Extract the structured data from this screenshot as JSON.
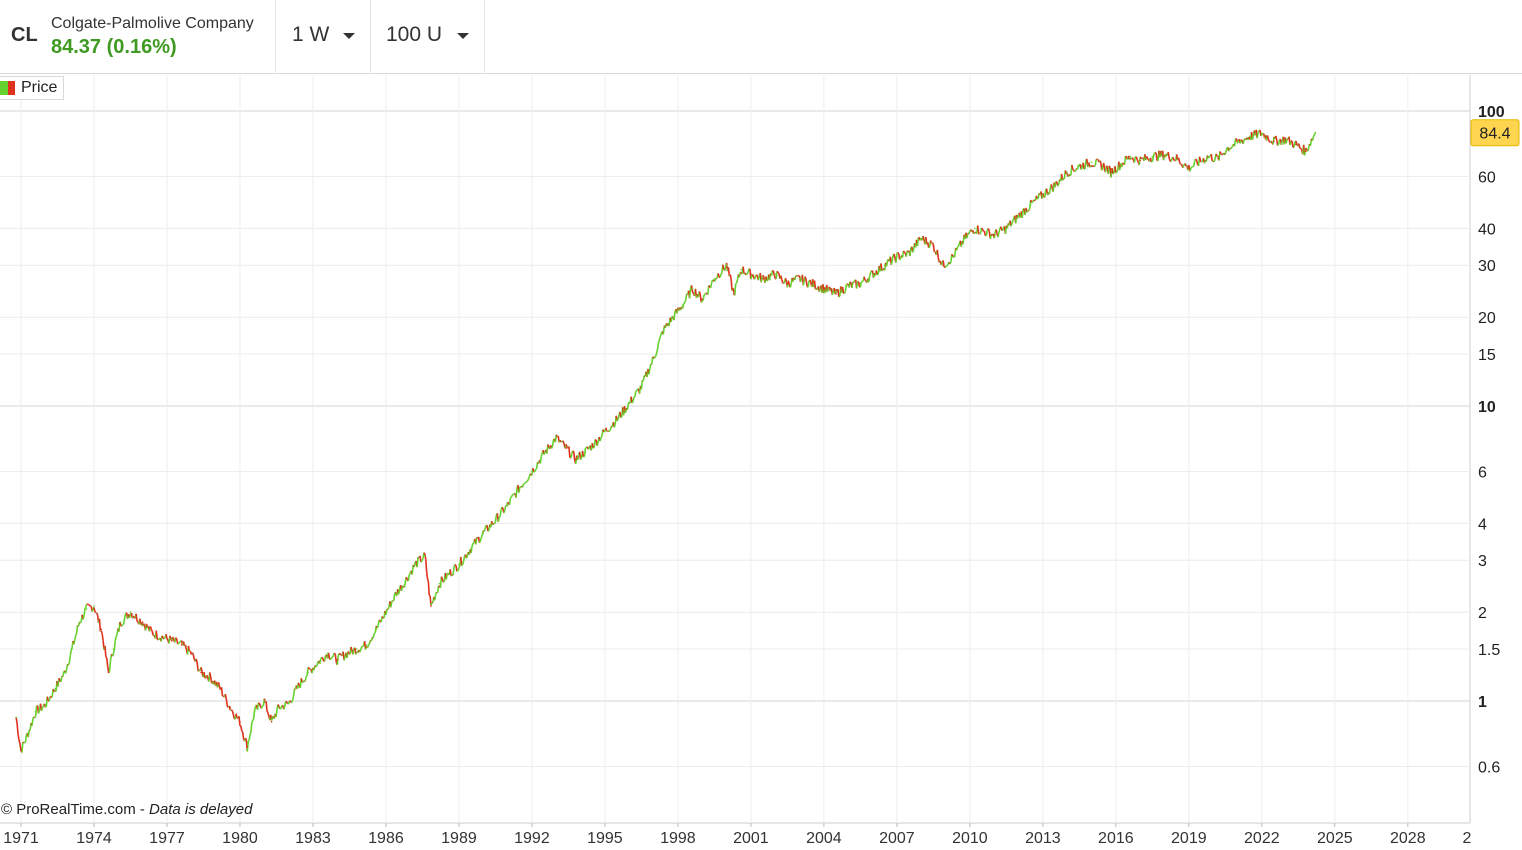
{
  "header": {
    "ticker": "CL",
    "company": "Colgate-Palmolive Company",
    "last_price": "84.37 (0.16%)",
    "interval_label": "1 W",
    "units_label": "100 U"
  },
  "legend": {
    "label": "Price",
    "up_color": "#66d22e",
    "down_color": "#e0301e"
  },
  "footer": {
    "source": "© ProRealTime.com",
    "separator": "-",
    "note": "Data is delayed"
  },
  "chart_data": {
    "type": "line",
    "title": "",
    "yscale": "log",
    "ylim": [
      0.5,
      120
    ],
    "xlim": [
      1970.8,
      2030.5
    ],
    "y_ticks": [
      "100",
      "60",
      "40",
      "30",
      "20",
      "15",
      "10",
      "6",
      "4",
      "3",
      "2",
      "1.5",
      "1",
      "0.6"
    ],
    "x_ticks": [
      "1971",
      "1974",
      "1977",
      "1980",
      "1983",
      "1986",
      "1989",
      "1992",
      "1995",
      "1998",
      "2001",
      "2004",
      "2007",
      "2010",
      "2013",
      "2016",
      "2019",
      "2022",
      "2025",
      "2028",
      "2"
    ],
    "last_value_label": "84.4",
    "last_value": 84.4,
    "series": [
      {
        "name": "Price",
        "x": [
          1970.8,
          1971.0,
          1971.3,
          1971.6,
          1972.0,
          1972.4,
          1972.8,
          1973.1,
          1973.4,
          1973.7,
          1974.0,
          1974.3,
          1974.6,
          1974.8,
          1975.1,
          1975.5,
          1976.0,
          1976.4,
          1976.8,
          1977.2,
          1977.6,
          1978.0,
          1978.4,
          1978.8,
          1979.2,
          1979.6,
          1980.0,
          1980.3,
          1980.6,
          1981.0,
          1981.3,
          1981.6,
          1982.0,
          1982.4,
          1982.8,
          1983.2,
          1983.6,
          1984.0,
          1984.4,
          1984.8,
          1985.2,
          1985.6,
          1986.0,
          1986.4,
          1986.8,
          1987.2,
          1987.6,
          1987.85,
          1988.2,
          1988.6,
          1989.0,
          1989.5,
          1990.0,
          1990.5,
          1991.0,
          1991.5,
          1992.0,
          1992.5,
          1993.0,
          1993.4,
          1993.8,
          1994.2,
          1994.6,
          1995.0,
          1995.5,
          1996.0,
          1996.5,
          1997.0,
          1997.4,
          1997.8,
          1998.2,
          1998.6,
          1999.0,
          1999.5,
          2000.0,
          2000.3,
          2000.6,
          2001.0,
          2001.5,
          2002.0,
          2002.5,
          2003.0,
          2003.5,
          2004.0,
          2004.5,
          2005.0,
          2005.5,
          2006.0,
          2006.5,
          2007.0,
          2007.5,
          2008.0,
          2008.5,
          2008.9,
          2009.3,
          2009.8,
          2010.2,
          2010.6,
          2011.0,
          2011.5,
          2012.0,
          2012.5,
          2013.0,
          2013.5,
          2014.0,
          2014.5,
          2015.0,
          2015.5,
          2015.8,
          2016.2,
          2016.6,
          2017.0,
          2017.5,
          2018.0,
          2018.5,
          2019.0,
          2019.4,
          2019.8,
          2020.2,
          2020.6,
          2021.0,
          2021.5,
          2022.0,
          2022.5,
          2023.0,
          2023.4,
          2023.8,
          2024.2
        ],
        "y": [
          0.88,
          0.68,
          0.78,
          0.92,
          0.97,
          1.1,
          1.25,
          1.5,
          1.85,
          2.05,
          2.1,
          1.75,
          1.25,
          1.5,
          1.85,
          2.0,
          1.85,
          1.7,
          1.65,
          1.6,
          1.55,
          1.45,
          1.25,
          1.2,
          1.1,
          0.95,
          0.85,
          0.7,
          0.92,
          1.0,
          0.85,
          0.95,
          0.98,
          1.12,
          1.25,
          1.35,
          1.45,
          1.38,
          1.45,
          1.5,
          1.55,
          1.75,
          2.0,
          2.3,
          2.55,
          2.9,
          3.1,
          2.1,
          2.5,
          2.7,
          2.9,
          3.3,
          3.7,
          4.1,
          4.6,
          5.3,
          6.0,
          6.9,
          7.8,
          7.2,
          6.6,
          7.0,
          7.5,
          8.2,
          9.0,
          10.2,
          11.6,
          14.5,
          18.0,
          20.0,
          22.0,
          25.0,
          23.0,
          27.0,
          30.0,
          24.0,
          29.0,
          28.0,
          27.0,
          28.0,
          26.0,
          27.0,
          26.0,
          25.0,
          24.0,
          25.5,
          26.0,
          28.0,
          30.0,
          32.0,
          33.0,
          37.0,
          35.0,
          30.0,
          32.0,
          37.0,
          40.0,
          39.0,
          38.0,
          40.0,
          44.0,
          48.0,
          52.0,
          56.0,
          62.0,
          65.0,
          67.0,
          65.0,
          62.0,
          66.0,
          70.0,
          68.0,
          70.0,
          71.0,
          69.0,
          64.0,
          67.0,
          70.0,
          69.0,
          75.0,
          78.0,
          82.0,
          84.0,
          79.0,
          80.0,
          77.0,
          73.0,
          84.4
        ]
      }
    ]
  }
}
